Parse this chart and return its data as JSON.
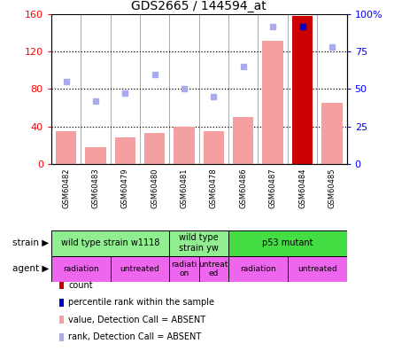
{
  "title": "GDS2665 / 144594_at",
  "samples": [
    "GSM60482",
    "GSM60483",
    "GSM60479",
    "GSM60480",
    "GSM60481",
    "GSM60478",
    "GSM60486",
    "GSM60487",
    "GSM60484",
    "GSM60485"
  ],
  "bar_values": [
    35,
    18,
    28,
    33,
    40,
    35,
    50,
    132,
    158,
    65
  ],
  "bar_colors": [
    "#f4a0a0",
    "#f4a0a0",
    "#f4a0a0",
    "#f4a0a0",
    "#f4a0a0",
    "#f4a0a0",
    "#f4a0a0",
    "#f4a0a0",
    "#cc0000",
    "#f4a0a0"
  ],
  "rank_dots": [
    55,
    42,
    47,
    60,
    50,
    45,
    65,
    92,
    92,
    78
  ],
  "rank_dot_colors": [
    "#aaaaee",
    "#aaaaee",
    "#aaaaee",
    "#aaaaee",
    "#aaaaee",
    "#aaaaee",
    "#aaaaee",
    "#aaaaee",
    "#0000cc",
    "#aaaaee"
  ],
  "ylim_left": [
    0,
    160
  ],
  "ylim_right": [
    0,
    100
  ],
  "yticks_left": [
    0,
    40,
    80,
    120,
    160
  ],
  "ytick_labels_left": [
    "0",
    "40",
    "80",
    "120",
    "160"
  ],
  "yticks_right": [
    0,
    25,
    50,
    75,
    100
  ],
  "ytick_labels_right": [
    "0",
    "25",
    "50",
    "75",
    "100%"
  ],
  "strain_groups": [
    {
      "label": "wild type strain w1118",
      "start": 0,
      "end": 4,
      "color": "#90ee90"
    },
    {
      "label": "wild type\nstrain yw",
      "start": 4,
      "end": 6,
      "color": "#90ee90"
    },
    {
      "label": "p53 mutant",
      "start": 6,
      "end": 10,
      "color": "#44dd44"
    }
  ],
  "agent_groups": [
    {
      "label": "radiation",
      "start": 0,
      "end": 2,
      "color": "#ee66ee"
    },
    {
      "label": "untreated",
      "start": 2,
      "end": 4,
      "color": "#ee66ee"
    },
    {
      "label": "radiati\non",
      "start": 4,
      "end": 5,
      "color": "#ee66ee"
    },
    {
      "label": "untreat\ned",
      "start": 5,
      "end": 6,
      "color": "#ee66ee"
    },
    {
      "label": "radiation",
      "start": 6,
      "end": 8,
      "color": "#ee66ee"
    },
    {
      "label": "untreated",
      "start": 8,
      "end": 10,
      "color": "#ee66ee"
    }
  ],
  "legend_items": [
    {
      "color": "#cc0000",
      "label": "count"
    },
    {
      "color": "#0000cc",
      "label": "percentile rank within the sample"
    },
    {
      "color": "#f4a0a0",
      "label": "value, Detection Call = ABSENT"
    },
    {
      "color": "#aaaaee",
      "label": "rank, Detection Call = ABSENT"
    }
  ],
  "strain_label": "strain",
  "agent_label": "agent",
  "sample_label_color": "#c0c0c0",
  "grid_line_color": "black",
  "bar_border_color": "none"
}
